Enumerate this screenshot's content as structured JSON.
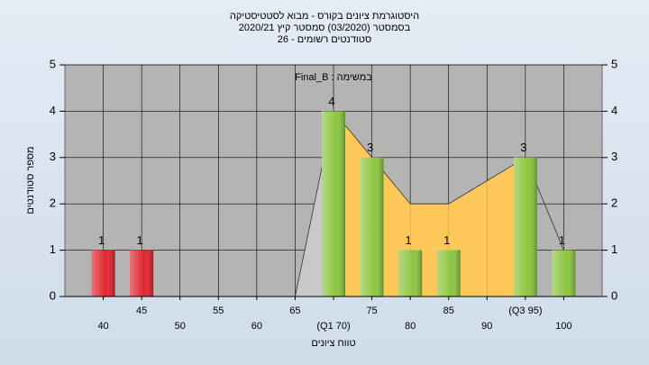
{
  "chart_data": {
    "type": "bar",
    "title": "היסטוגרמת ציונים בקורס - מבוא לסטטיסטיקה",
    "subtitle": "בסמסטר  (03/2020)  סמסטר קיץ  2020/21",
    "subtitle2": "סטודנטים רשומים - 26",
    "annotation": "במשימה : Final_B",
    "y_label": "מספר סטודנטים",
    "x_label": "טווח ציונים",
    "categories": [
      "40",
      "45",
      "50",
      "55",
      "60",
      "65",
      "(Q1 70)",
      "75",
      "80",
      "85",
      "90",
      "(Q3 95)",
      "100"
    ],
    "values": [
      1,
      1,
      0,
      0,
      0,
      0,
      4,
      3,
      1,
      1,
      0,
      3,
      1
    ],
    "colors": [
      "#e0262e",
      "#e0262e",
      "#8cc63f",
      "#8cc63f",
      "#8cc63f",
      "#8cc63f",
      "#8cc63f",
      "#8cc63f",
      "#8cc63f",
      "#8cc63f",
      "#8cc63f",
      "#8cc63f",
      "#8cc63f"
    ],
    "curve": {
      "values": [
        null,
        null,
        null,
        null,
        null,
        0,
        4,
        3,
        2,
        2,
        2.5,
        3,
        1
      ],
      "fills": [
        null,
        null,
        null,
        null,
        null,
        "#c8c8c8",
        "#ffc85a",
        "#ffc85a",
        "#ffc85a",
        "#ffc85a",
        "#ffc85a",
        null
      ]
    },
    "ylim": [
      0,
      5
    ],
    "yticks": [
      0,
      1,
      2,
      3,
      4,
      5
    ],
    "y2lim": [
      0,
      5
    ],
    "y2ticks": [
      0,
      1,
      2,
      3,
      4,
      5
    ],
    "grid": true
  }
}
